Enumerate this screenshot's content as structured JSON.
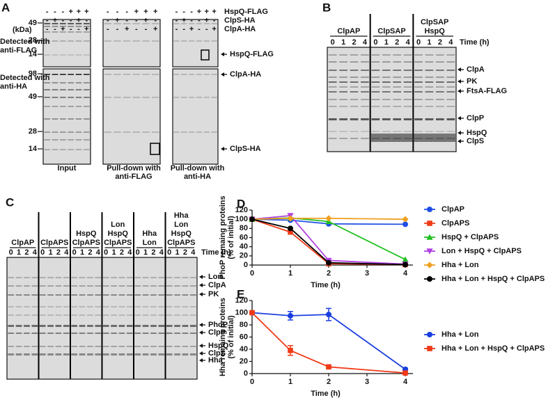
{
  "panel_a": {
    "label": "A",
    "unit": "(kDa)",
    "conditions": [
      {
        "name": "HspQ-FLAG",
        "signs": [
          "-",
          "-",
          "-",
          "+",
          "+",
          "+"
        ]
      },
      {
        "name": "ClpS-HA",
        "signs": [
          "-",
          "+",
          "-",
          "-",
          "+",
          "-"
        ]
      },
      {
        "name": "ClpA-HA",
        "signs": [
          "-",
          "-",
          "+",
          "-",
          "-",
          "+"
        ]
      }
    ],
    "rows": [
      {
        "detection": [
          "Detected with",
          "anti-FLAG"
        ],
        "markers": [
          "49",
          "28",
          "14"
        ],
        "bands": [
          "HspQ-FLAG"
        ]
      },
      {
        "detection": [
          "Detected with",
          "anti-HA"
        ],
        "markers": [
          "98",
          "49",
          "28",
          "14"
        ],
        "bands": [
          "ClpA-HA",
          "ClpS-HA"
        ]
      }
    ],
    "lane_groups": [
      [
        "Input"
      ],
      [
        "Pull-down with",
        "anti-FLAG"
      ],
      [
        "Pull-down with",
        "anti-HA"
      ]
    ]
  },
  "panel_b": {
    "label": "B",
    "groups": [
      [
        "ClpAP"
      ],
      [
        "ClpSAP"
      ],
      [
        "ClpSAP",
        "HspQ"
      ]
    ],
    "times": [
      "0",
      "1",
      "2",
      "4"
    ],
    "time_label": "Time (h)",
    "bands": [
      "ClpA",
      "PK",
      "FtsA-FLAG",
      "ClpP",
      "HspQ",
      "ClpS"
    ]
  },
  "panel_c": {
    "label": "C",
    "groups": [
      [
        "ClpAP"
      ],
      [
        "ClpAPS"
      ],
      [
        "HspQ",
        "ClpAPS"
      ],
      [
        "Lon",
        "HspQ",
        "ClpAPS"
      ],
      [
        "Hha",
        "Lon"
      ],
      [
        "Hha",
        "Lon",
        "HspQ",
        "ClpAPS"
      ]
    ],
    "times": [
      "0",
      "1",
      "2",
      "4"
    ],
    "time_label": "Time (h)",
    "bands": [
      "Lon",
      "ClpA",
      "PK",
      "PhoP",
      "ClpP",
      "HspQ",
      "ClpS",
      "Hha"
    ]
  },
  "chart_data": [
    {
      "type": "line",
      "panel_label": "D",
      "ylabel": [
        "PhoP remaing proteins",
        "(% of initial)"
      ],
      "xlabel": "Time (h)",
      "x": [
        0,
        1,
        2,
        4
      ],
      "xlim": [
        0,
        4.2
      ],
      "xticks": [
        0,
        1,
        2,
        3,
        4
      ],
      "ylim": [
        0,
        120
      ],
      "yticks": [
        0,
        20,
        40,
        60,
        80,
        100,
        120
      ],
      "series": [
        {
          "name": "ClpAP",
          "color": "#1f4fe6",
          "marker": "circle",
          "values": [
            100,
            98,
            90,
            89
          ]
        },
        {
          "name": "ClpAPS",
          "color": "#f03a17",
          "marker": "square",
          "values": [
            100,
            72,
            3,
            1
          ]
        },
        {
          "name": "HspQ + ClpAPS",
          "color": "#22c022",
          "marker": "triangle-up",
          "values": [
            100,
            103,
            95,
            12
          ]
        },
        {
          "name": "Lon + HspQ + ClpAPS",
          "color": "#b040e0",
          "marker": "triangle-down",
          "values": [
            100,
            108,
            10,
            2
          ]
        },
        {
          "name": "Hha + Lon",
          "color": "#f0a020",
          "marker": "diamond",
          "values": [
            100,
            102,
            102,
            100
          ]
        },
        {
          "name": "Hha + Lon + HspQ + ClpAPS",
          "color": "#000000",
          "marker": "circle",
          "values": [
            100,
            80,
            5,
            1
          ]
        }
      ]
    },
    {
      "type": "line",
      "panel_label": "E",
      "ylabel": [
        "Hha remaing proteins",
        "(% of initial)"
      ],
      "xlabel": "Time (h)",
      "x": [
        0,
        1,
        2,
        4
      ],
      "xlim": [
        0,
        4.2
      ],
      "xticks": [
        0,
        1,
        2,
        3,
        4
      ],
      "ylim": [
        0,
        120
      ],
      "yticks": [
        0,
        20,
        40,
        60,
        80,
        100,
        120
      ],
      "series": [
        {
          "name": "Hha + Lon",
          "color": "#1a3fe0",
          "marker": "circle",
          "values": [
            100,
            95,
            97,
            7
          ],
          "errors": [
            0,
            7,
            10,
            2
          ]
        },
        {
          "name": "Hha + Lon + HspQ + ClpAPS",
          "color": "#f03a17",
          "marker": "square",
          "values": [
            100,
            38,
            11,
            1
          ],
          "errors": [
            0,
            8,
            2,
            1
          ]
        }
      ]
    }
  ]
}
